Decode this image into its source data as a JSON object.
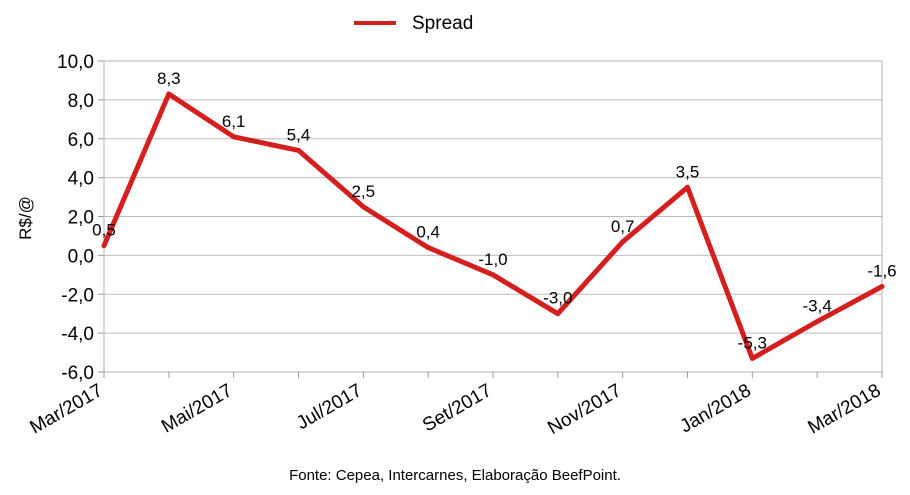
{
  "chart_data": {
    "type": "line",
    "series": [
      {
        "name": "Spread",
        "color": "#d41f1f",
        "values": [
          0.5,
          8.3,
          6.1,
          5.4,
          2.5,
          0.4,
          -1.0,
          -3.0,
          0.7,
          3.5,
          -5.3,
          -3.4,
          -1.6
        ],
        "labels": [
          "0,5",
          "8,3",
          "6,1",
          "5,4",
          "2,5",
          "0,4",
          "-1,0",
          "-3,0",
          "0,7",
          "3,5",
          "-5,3",
          "-3,4",
          "-1,6"
        ]
      }
    ],
    "x_tick_labels": [
      "Mar/2017",
      "Mai/2017",
      "Jul/2017",
      "Set/2017",
      "Nov/2017",
      "Jan/2018",
      "Mar/2018"
    ],
    "x_tick_every": 2,
    "ylabel": "R$/@",
    "ylim": [
      -6,
      10
    ],
    "y_ticks": [
      10,
      8,
      6,
      4,
      2,
      0,
      -2,
      -4,
      -6
    ],
    "y_tick_labels": [
      "10,0",
      "8,0",
      "6,0",
      "4,0",
      "2,0",
      "0,0",
      "-2,0",
      "-4,0",
      "-6,0"
    ],
    "grid": true,
    "legend_position": "top-center",
    "source": "Fonte: Cepea, Intercarnes, Elaboração BeefPoint."
  }
}
